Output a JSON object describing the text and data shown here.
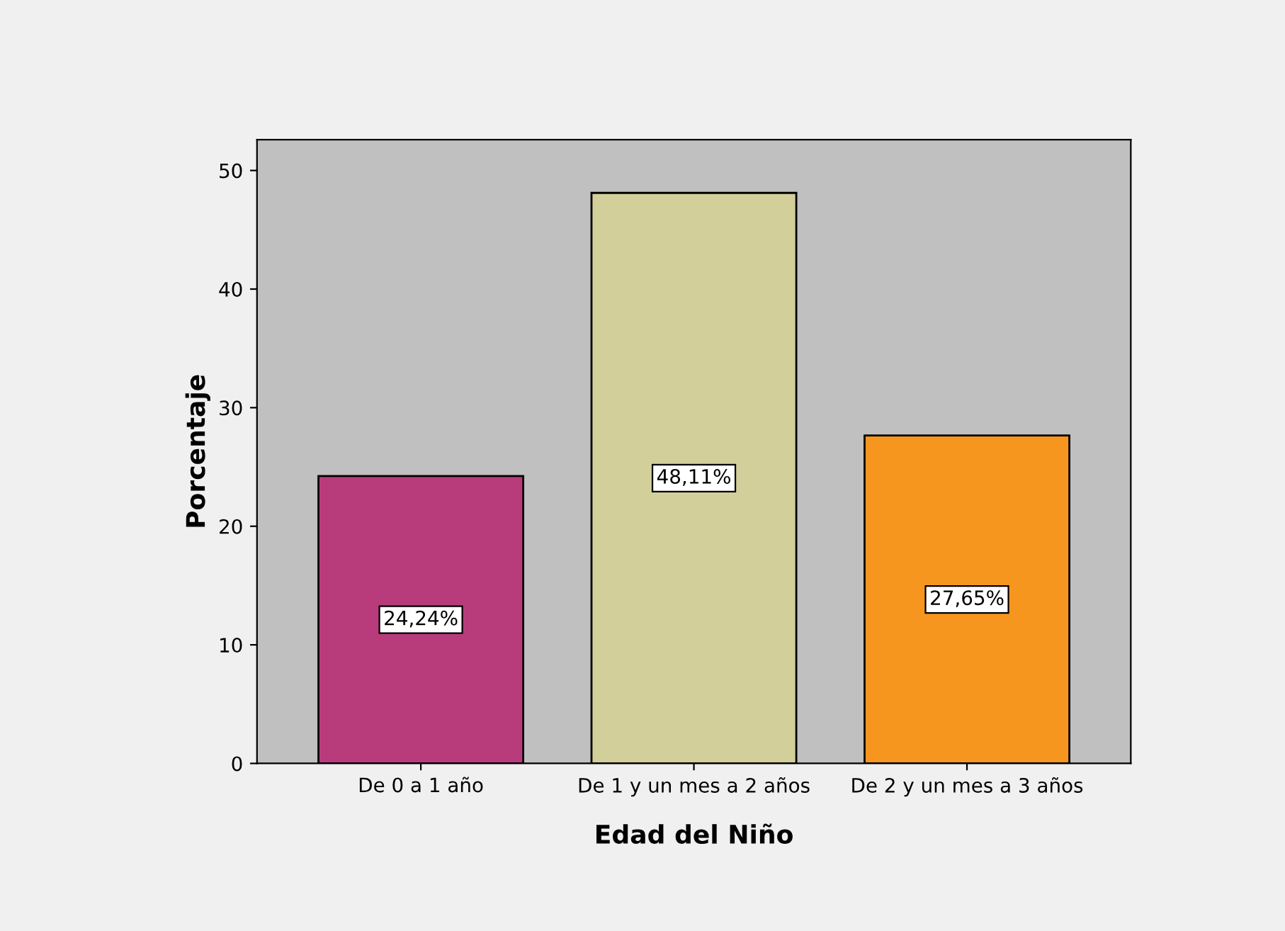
{
  "chart_data": {
    "type": "bar",
    "xlabel": "Edad del Niño",
    "ylabel": "Porcentaje",
    "categories": [
      "De 0 a 1 año",
      "De 1 y un mes a 2 años",
      "De 2 y un mes a 3 años"
    ],
    "values": [
      24.24,
      48.11,
      27.65
    ],
    "colors": [
      "#b83c7c",
      "#d3cf9a",
      "#f7961f"
    ],
    "value_labels": [
      "24,24%",
      "48,11%",
      "27,65%"
    ],
    "ylim": [
      0,
      52.6
    ],
    "yticks": [
      0,
      10,
      20,
      30,
      40,
      50
    ],
    "grid": false
  }
}
